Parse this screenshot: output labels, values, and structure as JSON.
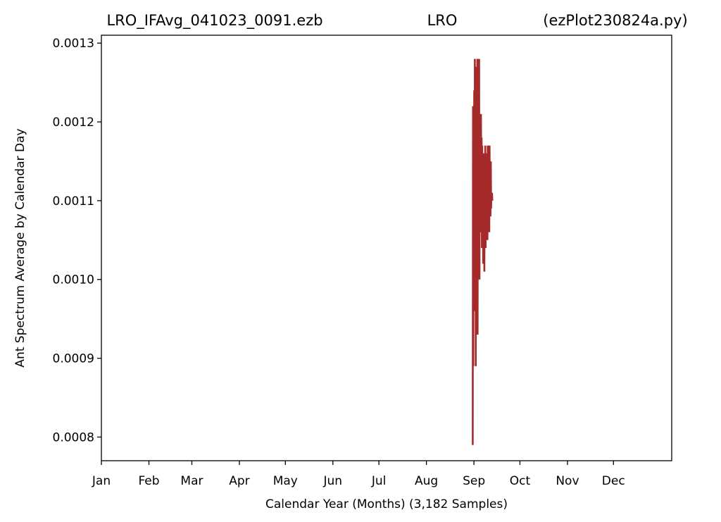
{
  "colors": {
    "series": "#a52a2a",
    "axes": "#000000",
    "background": "#ffffff"
  },
  "chart_data": {
    "type": "line",
    "title_parts": [
      "LRO_IFAvg_041023_0091.ezb",
      "LRO",
      "(ezPlot230824a.py)"
    ],
    "xlabel": "Calendar Year (Months) (3,182 Samples)",
    "ylabel": "Ant Spectrum Average by Calendar Day",
    "x_ticks": [
      {
        "label": "Jan",
        "day": 0
      },
      {
        "label": "Feb",
        "day": 31
      },
      {
        "label": "Mar",
        "day": 59
      },
      {
        "label": "Apr",
        "day": 90
      },
      {
        "label": "May",
        "day": 120
      },
      {
        "label": "Jun",
        "day": 151
      },
      {
        "label": "Jul",
        "day": 181
      },
      {
        "label": "Aug",
        "day": 212
      },
      {
        "label": "Sep",
        "day": 243
      },
      {
        "label": "Oct",
        "day": 273
      },
      {
        "label": "Nov",
        "day": 304
      },
      {
        "label": "Dec",
        "day": 334
      }
    ],
    "y_ticks": [
      "0.0008",
      "0.0009",
      "0.0010",
      "0.0011",
      "0.0012",
      "0.0013"
    ],
    "xlim": [
      0,
      372
    ],
    "ylim": [
      0.00077,
      0.00131
    ],
    "grid": false,
    "series": [
      {
        "x": [
          242.2,
          242.4,
          242.6,
          242.8,
          243.0,
          243.2,
          243.4,
          243.6,
          243.8,
          244.0,
          244.2,
          244.4,
          244.6,
          244.8,
          245.0,
          245.2,
          245.4,
          245.6,
          245.8,
          246.0,
          246.2,
          246.4,
          246.6,
          246.8,
          247.0,
          247.2,
          247.4,
          247.6,
          247.8,
          248.0,
          248.2,
          248.4,
          248.6,
          248.8,
          249.0,
          249.2,
          249.4,
          249.6,
          249.8,
          250.0,
          250.2,
          250.4,
          250.6,
          250.8,
          251.0,
          251.2,
          251.4,
          251.6,
          251.8,
          252.0,
          252.2,
          252.4,
          252.6,
          252.8,
          253.0,
          253.2,
          253.4,
          253.6,
          253.8,
          254.0,
          254.2,
          254.4,
          254.6,
          254.8,
          255.0
        ],
        "y": [
          0.00079,
          0.00122,
          0.00089,
          0.00118,
          0.00105,
          0.00124,
          0.00099,
          0.00128,
          0.00096,
          0.00127,
          0.00089,
          0.00122,
          0.00101,
          0.00126,
          0.00097,
          0.00128,
          0.00093,
          0.00125,
          0.00104,
          0.00121,
          0.00108,
          0.00128,
          0.001,
          0.00119,
          0.00112,
          0.00117,
          0.00106,
          0.00121,
          0.0011,
          0.00118,
          0.00104,
          0.00117,
          0.00108,
          0.00116,
          0.00102,
          0.00114,
          0.00109,
          0.00116,
          0.00101,
          0.00113,
          0.00106,
          0.00117,
          0.00104,
          0.00115,
          0.00108,
          0.00111,
          0.00106,
          0.00116,
          0.00105,
          0.00117,
          0.00109,
          0.00112,
          0.00107,
          0.00114,
          0.00106,
          0.00117,
          0.0011,
          0.00113,
          0.00108,
          0.00115,
          0.00109,
          0.00111,
          0.0011,
          0.00111,
          0.0011
        ]
      }
    ]
  }
}
